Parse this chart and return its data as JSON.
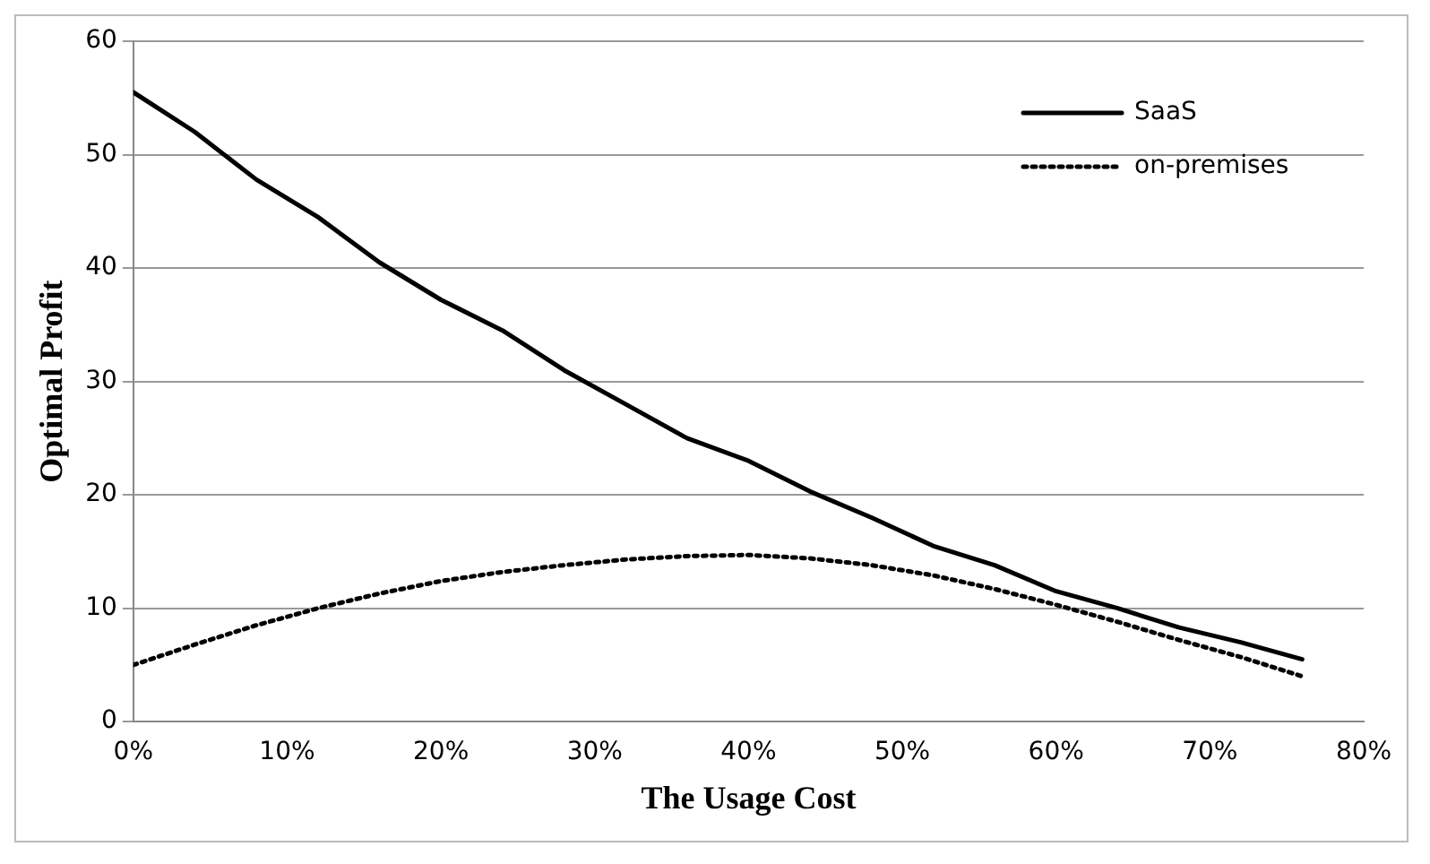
{
  "chart_data": {
    "type": "line",
    "xlabel": "The Usage Cost",
    "ylabel": "Optimal Profit",
    "x": [
      0,
      4,
      8,
      12,
      16,
      20,
      24,
      28,
      32,
      36,
      40,
      44,
      48,
      52,
      56,
      60,
      64,
      68,
      72,
      76
    ],
    "series": [
      {
        "name": "SaaS",
        "color": "#000000",
        "line_style": "solid",
        "values": [
          55.5,
          52,
          47.8,
          44.5,
          40.5,
          37.2,
          34.5,
          31,
          28,
          25,
          23,
          20.3,
          18,
          15.5,
          13.8,
          11.5,
          10,
          8.3,
          7,
          5.5
        ]
      },
      {
        "name": "on-premises",
        "color": "#000000",
        "line_style": "dotted",
        "values": [
          5,
          6.8,
          8.5,
          10,
          11.3,
          12.4,
          13.2,
          13.8,
          14.3,
          14.6,
          14.7,
          14.4,
          13.8,
          12.9,
          11.7,
          10.3,
          8.8,
          7.2,
          5.7,
          4
        ]
      }
    ],
    "xlim": [
      0,
      80
    ],
    "xticks": [
      {
        "value": 0,
        "label": "0%"
      },
      {
        "value": 10,
        "label": "10%"
      },
      {
        "value": 20,
        "label": "20%"
      },
      {
        "value": 30,
        "label": "30%"
      },
      {
        "value": 40,
        "label": "40%"
      },
      {
        "value": 50,
        "label": "50%"
      },
      {
        "value": 60,
        "label": "60%"
      },
      {
        "value": 70,
        "label": "70%"
      },
      {
        "value": 80,
        "label": "80%"
      }
    ],
    "ylim": [
      0,
      60
    ],
    "yticks": [
      0,
      10,
      20,
      30,
      40,
      50,
      60
    ],
    "grid": "y",
    "legend": "top right",
    "marker": "none"
  }
}
